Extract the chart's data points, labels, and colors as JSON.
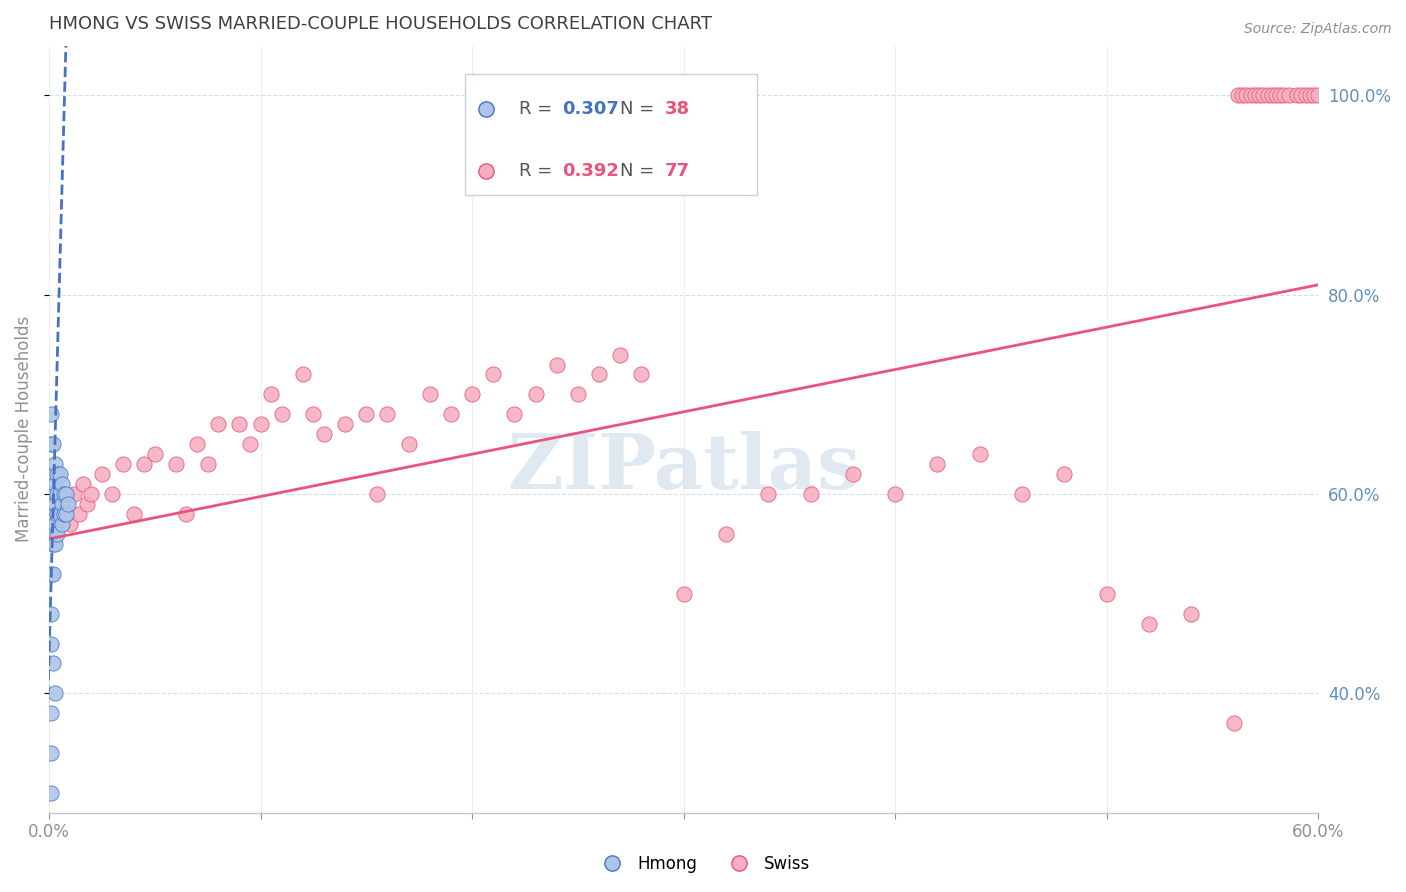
{
  "title": "HMONG VS SWISS MARRIED-COUPLE HOUSEHOLDS CORRELATION CHART",
  "source": "Source: ZipAtlas.com",
  "ylabel": "Married-couple Households",
  "xlim": [
    0.0,
    0.6
  ],
  "ylim": [
    0.28,
    1.05
  ],
  "xticks": [
    0.0,
    0.1,
    0.2,
    0.3,
    0.4,
    0.5,
    0.6
  ],
  "xticklabels": [
    "0.0%",
    "",
    "",
    "",
    "",
    "",
    "60.0%"
  ],
  "yticks_right": [
    0.4,
    0.6,
    0.8,
    1.0
  ],
  "yticklabels_right": [
    "40.0%",
    "60.0%",
    "80.0%",
    "100.0%"
  ],
  "hmong_R": 0.307,
  "hmong_N": 38,
  "swiss_R": 0.392,
  "swiss_N": 77,
  "watermark": "ZIPatlas",
  "hmong_color": "#adc6e8",
  "swiss_color": "#f5afc0",
  "hmong_line_color": "#4472c4",
  "swiss_line_color": "#e8547a",
  "tick_color": "#909090",
  "grid_color": "#d8dde8",
  "title_color": "#404040",
  "right_tick_color": "#6090c0",
  "source_color": "#909090",
  "hmong_x": [
    0.001,
    0.001,
    0.001,
    0.001,
    0.001,
    0.001,
    0.002,
    0.002,
    0.002,
    0.002,
    0.002,
    0.002,
    0.003,
    0.003,
    0.003,
    0.003,
    0.003,
    0.004,
    0.004,
    0.004,
    0.004,
    0.005,
    0.005,
    0.005,
    0.006,
    0.006,
    0.006,
    0.007,
    0.007,
    0.008,
    0.008,
    0.009,
    0.001,
    0.002,
    0.003,
    0.001,
    0.001,
    0.001
  ],
  "hmong_y": [
    0.68,
    0.65,
    0.6,
    0.56,
    0.52,
    0.48,
    0.65,
    0.62,
    0.6,
    0.58,
    0.55,
    0.52,
    0.63,
    0.61,
    0.59,
    0.57,
    0.55,
    0.62,
    0.6,
    0.58,
    0.56,
    0.62,
    0.6,
    0.58,
    0.61,
    0.59,
    0.57,
    0.6,
    0.58,
    0.6,
    0.58,
    0.59,
    0.45,
    0.43,
    0.4,
    0.38,
    0.34,
    0.3
  ],
  "swiss_x": [
    0.004,
    0.006,
    0.008,
    0.01,
    0.012,
    0.014,
    0.016,
    0.018,
    0.02,
    0.025,
    0.03,
    0.035,
    0.04,
    0.045,
    0.05,
    0.06,
    0.065,
    0.07,
    0.075,
    0.08,
    0.09,
    0.095,
    0.1,
    0.105,
    0.11,
    0.12,
    0.125,
    0.13,
    0.14,
    0.15,
    0.155,
    0.16,
    0.17,
    0.18,
    0.19,
    0.2,
    0.21,
    0.22,
    0.23,
    0.24,
    0.25,
    0.26,
    0.27,
    0.28,
    0.3,
    0.32,
    0.34,
    0.36,
    0.38,
    0.4,
    0.42,
    0.44,
    0.46,
    0.48,
    0.5,
    0.52,
    0.54,
    0.56,
    0.562,
    0.564,
    0.566,
    0.568,
    0.57,
    0.572,
    0.574,
    0.576,
    0.578,
    0.58,
    0.582,
    0.584,
    0.586,
    0.59,
    0.592,
    0.594,
    0.596,
    0.598,
    0.6
  ],
  "swiss_y": [
    0.57,
    0.58,
    0.59,
    0.57,
    0.6,
    0.58,
    0.61,
    0.59,
    0.6,
    0.62,
    0.6,
    0.63,
    0.58,
    0.63,
    0.64,
    0.63,
    0.58,
    0.65,
    0.63,
    0.67,
    0.67,
    0.65,
    0.67,
    0.7,
    0.68,
    0.72,
    0.68,
    0.66,
    0.67,
    0.68,
    0.6,
    0.68,
    0.65,
    0.7,
    0.68,
    0.7,
    0.72,
    0.68,
    0.7,
    0.73,
    0.7,
    0.72,
    0.74,
    0.72,
    0.5,
    0.56,
    0.6,
    0.6,
    0.62,
    0.6,
    0.63,
    0.64,
    0.6,
    0.62,
    0.5,
    0.47,
    0.48,
    0.37,
    1.0,
    1.0,
    1.0,
    1.0,
    1.0,
    1.0,
    1.0,
    1.0,
    1.0,
    1.0,
    1.0,
    1.0,
    1.0,
    1.0,
    1.0,
    1.0,
    1.0,
    1.0,
    1.0
  ],
  "swiss_line_x0": 0.0,
  "swiss_line_y0": 0.555,
  "swiss_line_x1": 0.6,
  "swiss_line_y1": 0.81,
  "hmong_line_x0": -0.002,
  "hmong_line_y0": 0.28,
  "hmong_line_x1": 0.008,
  "hmong_line_y1": 1.05
}
